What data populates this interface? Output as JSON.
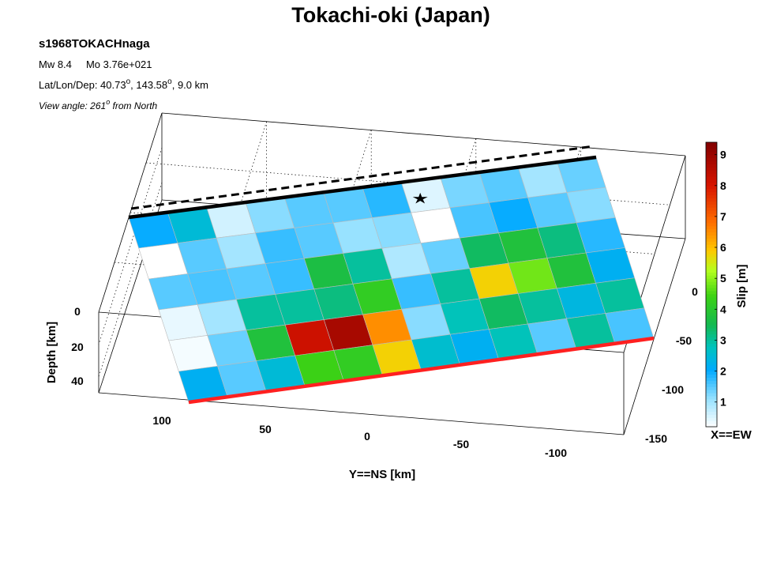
{
  "header": {
    "title": "Tokachi-oki (Japan)",
    "event_id": "s1968TOKACHnaga",
    "mw_line": "Mw 8.4     Mo 3.76e+021",
    "loc_prefix": "Lat/Lon/Dep: 40.73",
    "loc_lon": ", 143.58",
    "loc_suffix": ", 9.0 km",
    "degree_symbol": "o",
    "view_prefix": "View angle: 261",
    "view_suffix": " from North"
  },
  "colors": {
    "top_edge": "#000000",
    "bottom_edge": "#ff2020",
    "cell_border": "#bbbbbb"
  },
  "chart_data": {
    "type": "heatmap",
    "grid_rows": 6,
    "grid_cols": 12,
    "slip": [
      [
        2.0,
        2.5,
        0.6,
        1.2,
        1.5,
        1.5,
        1.8,
        0.5,
        1.3,
        1.5,
        1.0,
        1.4
      ],
      [
        0.2,
        1.5,
        1.0,
        1.7,
        1.5,
        1.1,
        1.2,
        0.2,
        1.6,
        2.0,
        1.5,
        1.2
      ],
      [
        1.5,
        1.6,
        1.5,
        1.7,
        3.7,
        3.0,
        0.9,
        1.4,
        3.4,
        3.8,
        3.2,
        1.8
      ],
      [
        0.4,
        1.0,
        3.0,
        3.0,
        3.2,
        4.2,
        1.7,
        3.0,
        5.8,
        4.8,
        3.8,
        2.2
      ],
      [
        0.3,
        1.4,
        3.8,
        8.2,
        8.8,
        6.5,
        1.2,
        2.8,
        3.4,
        3.0,
        2.4,
        3.0
      ],
      [
        2.2,
        1.5,
        2.5,
        4.4,
        4.2,
        5.8,
        2.6,
        2.2,
        2.8,
        1.5,
        3.0,
        1.6
      ]
    ],
    "hypocenter": {
      "row": 0,
      "col": 7,
      "marker": "star"
    },
    "axes": {
      "y_label": "Y==NS [km]",
      "y_ticks": [
        "100",
        "50",
        "0",
        "-50",
        "-100"
      ],
      "x_label": "X==EW",
      "x_ticks": [
        "0",
        "-50",
        "-100",
        "-150"
      ],
      "z_label": "Depth [km]",
      "z_ticks": [
        "0",
        "20",
        "40"
      ]
    },
    "colorbar": {
      "label": "Slip [m]",
      "range": [
        0.2,
        9.4
      ],
      "ticks": [
        1,
        2,
        3,
        4,
        5,
        6,
        7,
        8,
        9
      ],
      "tick_labels": [
        "1",
        "2",
        "3",
        "4",
        "5",
        "6",
        "7",
        "8",
        "9"
      ],
      "colormap": "jet-white"
    },
    "grid": true
  }
}
